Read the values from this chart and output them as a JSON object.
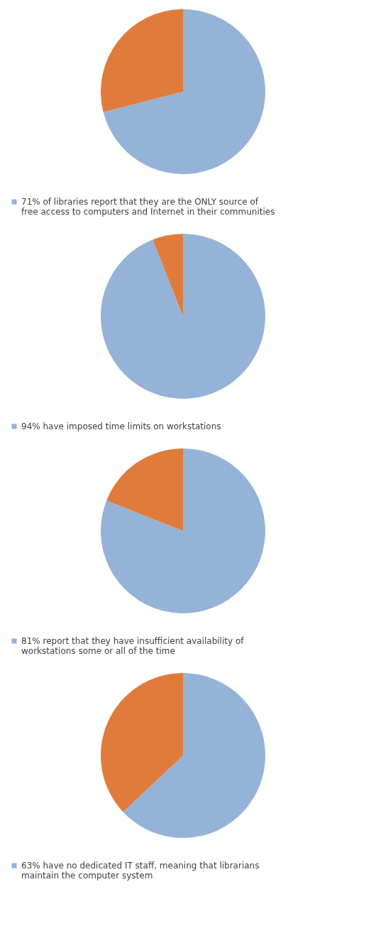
{
  "chart_data": [
    {
      "type": "pie",
      "categories": [
        "71% of libraries report that they are the ONLY source of free access to computers and Internet in their communities",
        null
      ],
      "values": [
        71,
        29
      ],
      "colors": [
        "#95b3d7",
        "#e07b3c"
      ],
      "legend": "bottom"
    },
    {
      "type": "pie",
      "categories": [
        "94% have imposed time limits on workstations",
        null
      ],
      "values": [
        94,
        6
      ],
      "colors": [
        "#95b3d7",
        "#e07b3c"
      ],
      "legend": "bottom"
    },
    {
      "type": "pie",
      "categories": [
        "81% report that they have insufficient availability of workstations some or all of the time",
        null
      ],
      "values": [
        81,
        19
      ],
      "colors": [
        "#95b3d7",
        "#e07b3c"
      ],
      "legend": "bottom"
    },
    {
      "type": "pie",
      "categories": [
        "63% have no dedicated IT staff, meaning that librarians maintain the computer system",
        null
      ],
      "values": [
        63,
        37
      ],
      "colors": [
        "#95b3d7",
        "#e07b3c"
      ],
      "legend": "bottom"
    }
  ]
}
